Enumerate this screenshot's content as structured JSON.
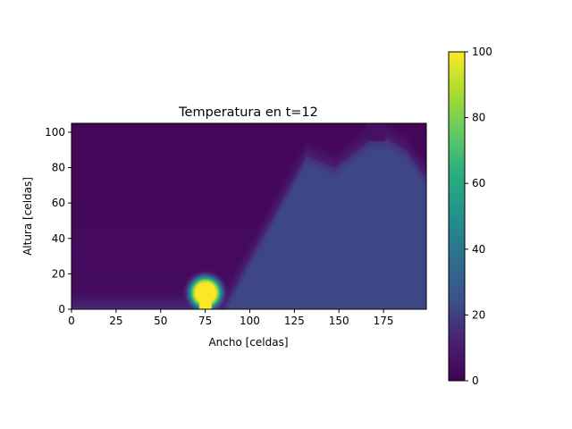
{
  "chart_data": {
    "type": "heatmap",
    "title": "Temperatura en t=12",
    "xlabel": "Ancho [celdas]",
    "ylabel": "Altura [celdas]",
    "xlim": [
      0,
      199
    ],
    "ylim": [
      0,
      105
    ],
    "xticks": [
      0,
      25,
      50,
      75,
      100,
      125,
      150,
      175
    ],
    "yticks": [
      0,
      20,
      40,
      60,
      80,
      100
    ],
    "colormap": "viridis",
    "colorbar": {
      "range": [
        0,
        100
      ],
      "ticks": [
        0,
        20,
        40,
        60,
        80,
        100
      ]
    },
    "field": {
      "background_sky_value_low": 4,
      "background_sky_value_high": 2,
      "ground_value": 22,
      "terrain_profile": [
        [
          0,
          0
        ],
        [
          85,
          0
        ],
        [
          132,
          87
        ],
        [
          148,
          80
        ],
        [
          168,
          96
        ],
        [
          178,
          96
        ],
        [
          188,
          90
        ],
        [
          199,
          75
        ]
      ],
      "heat_source": {
        "x": 75,
        "y": 9,
        "value": 100,
        "width": 6,
        "height_to": 9
      },
      "cold_notch": {
        "x_from": 166,
        "x_to": 176,
        "y_from": 96,
        "y_to": 105,
        "value": 6
      }
    }
  },
  "colors": {
    "viridis_low": "#440154",
    "viridis_mid": "#21918c",
    "viridis_high": "#fde725"
  }
}
